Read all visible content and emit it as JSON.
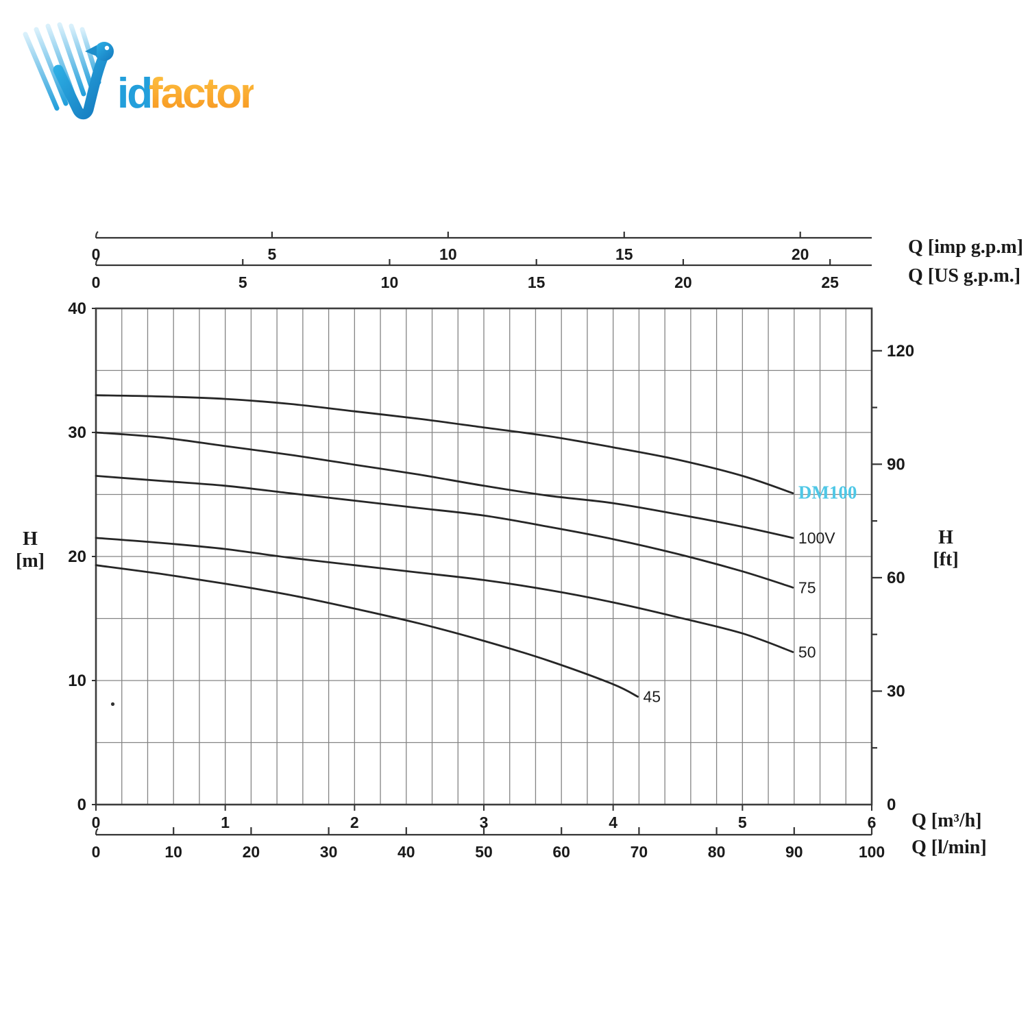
{
  "logo": {
    "name": "Vidfactor",
    "text_blue": "id",
    "text_orange": "factor",
    "blue": "#239fdb",
    "blue_dark": "#1478bd",
    "blue_light": "#bfe6f7",
    "orange": "#f7941e",
    "orange_light": "#fdc343"
  },
  "chart_data": {
    "type": "line",
    "axes": {
      "top_imp": {
        "label": "Q [imp g.p.m]",
        "ticks": [
          0,
          5,
          10,
          15,
          20
        ],
        "range": [
          0,
          22.03
        ]
      },
      "top_us": {
        "label": "Q [US g.p.m.]",
        "ticks": [
          0,
          5,
          10,
          15,
          20,
          25
        ],
        "range": [
          0,
          26.42
        ]
      },
      "bottom_m3h": {
        "label": "Q [m³/h]",
        "ticks": [
          0,
          1,
          2,
          3,
          4,
          5,
          6
        ],
        "range": [
          0,
          6
        ]
      },
      "bottom_lmin": {
        "label": "Q [l/min]",
        "ticks": [
          0,
          10,
          20,
          30,
          40,
          50,
          60,
          70,
          80,
          90,
          100
        ],
        "range": [
          0,
          100
        ]
      },
      "left": {
        "label_line1": "H",
        "label_line2": "[m]",
        "ticks": [
          0,
          10,
          20,
          30,
          40
        ],
        "range": [
          0,
          40
        ],
        "grid_step": 5
      },
      "right": {
        "label_line1": "H",
        "label_line2": "[ft]",
        "ticks": [
          0,
          30,
          60,
          90,
          120
        ],
        "minor_step": 15,
        "range": [
          0,
          131.2
        ]
      }
    },
    "grid": {
      "v_step_m3h": 0.2,
      "h_step_m": 5
    },
    "series": [
      {
        "name": "DM100",
        "label_color": "#4ec7e6",
        "label_serif": true,
        "points": [
          [
            0,
            33.0
          ],
          [
            0.5,
            32.9
          ],
          [
            1,
            32.7
          ],
          [
            1.5,
            32.3
          ],
          [
            2,
            31.7
          ],
          [
            2.5,
            31.1
          ],
          [
            3,
            30.4
          ],
          [
            3.5,
            29.7
          ],
          [
            4,
            28.8
          ],
          [
            4.5,
            27.8
          ],
          [
            5,
            26.5
          ],
          [
            5.39,
            25.1
          ]
        ]
      },
      {
        "name": "100V",
        "label_color": "#1f1f1f",
        "label_serif": false,
        "points": [
          [
            0,
            30.0
          ],
          [
            0.5,
            29.6
          ],
          [
            1,
            28.9
          ],
          [
            1.5,
            28.2
          ],
          [
            2,
            27.4
          ],
          [
            2.5,
            26.6
          ],
          [
            3,
            25.7
          ],
          [
            3.5,
            24.9
          ],
          [
            4,
            24.3
          ],
          [
            4.5,
            23.4
          ],
          [
            5,
            22.4
          ],
          [
            5.39,
            21.5
          ]
        ]
      },
      {
        "name": "75",
        "label_color": "#1f1f1f",
        "label_serif": false,
        "points": [
          [
            0,
            26.5
          ],
          [
            0.5,
            26.1
          ],
          [
            1,
            25.7
          ],
          [
            1.5,
            25.1
          ],
          [
            2,
            24.5
          ],
          [
            2.5,
            23.9
          ],
          [
            3,
            23.3
          ],
          [
            3.5,
            22.4
          ],
          [
            4,
            21.4
          ],
          [
            4.5,
            20.2
          ],
          [
            5,
            18.8
          ],
          [
            5.39,
            17.5
          ]
        ]
      },
      {
        "name": "50",
        "label_color": "#1f1f1f",
        "label_serif": false,
        "points": [
          [
            0,
            21.5
          ],
          [
            0.5,
            21.1
          ],
          [
            1,
            20.6
          ],
          [
            1.5,
            19.9
          ],
          [
            2,
            19.3
          ],
          [
            2.5,
            18.7
          ],
          [
            3,
            18.1
          ],
          [
            3.5,
            17.3
          ],
          [
            4,
            16.3
          ],
          [
            4.5,
            15.1
          ],
          [
            5,
            13.8
          ],
          [
            5.39,
            12.3
          ]
        ]
      },
      {
        "name": "45",
        "label_color": "#1f1f1f",
        "label_serif": false,
        "points": [
          [
            0,
            19.3
          ],
          [
            0.5,
            18.6
          ],
          [
            1,
            17.8
          ],
          [
            1.5,
            16.9
          ],
          [
            2,
            15.8
          ],
          [
            2.5,
            14.6
          ],
          [
            3,
            13.2
          ],
          [
            3.5,
            11.6
          ],
          [
            4,
            9.7
          ],
          [
            4.19,
            8.7
          ]
        ]
      }
    ],
    "stray_dot": {
      "q": 0.13,
      "h": 8.1
    },
    "colors": {
      "curve": "#262626",
      "grid": "#838383",
      "axis": "#333333",
      "border": "#3c3c3c",
      "tick_text": "#1a1a1a"
    }
  }
}
